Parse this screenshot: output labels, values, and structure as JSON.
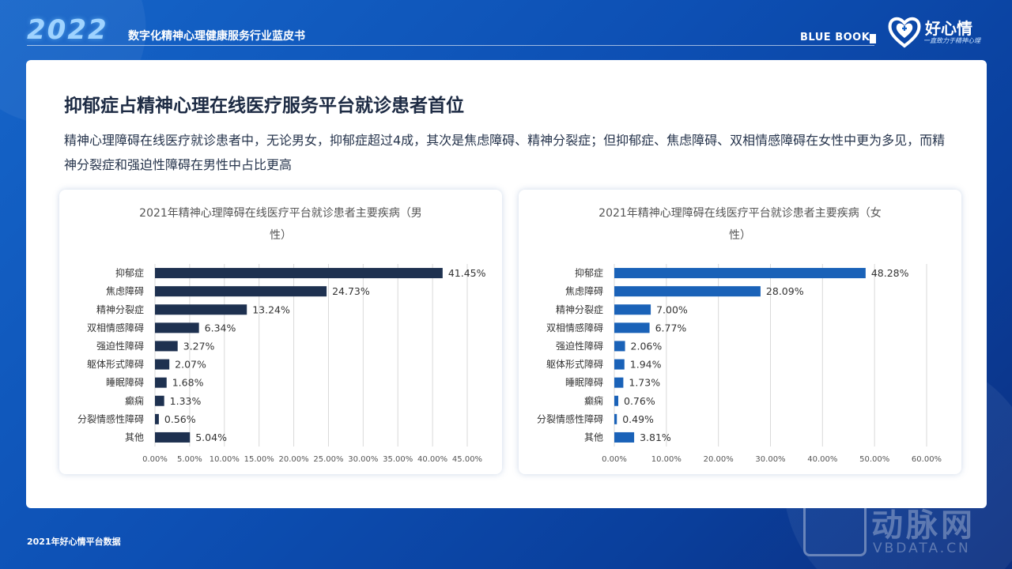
{
  "header": {
    "year": "2022",
    "report_title": "数字化精神心理健康服务行业蓝皮书",
    "bluebook": "BLUE BOOK",
    "logo_name": "好心情",
    "logo_tagline": "一直致力于精神心理"
  },
  "main": {
    "headline": "抑郁症占精神心理在线医疗服务平台就诊患者首位",
    "subtext": "精神心理障碍在线医疗就诊患者中，无论男女，抑郁症超过4成，其次是焦虑障碍、精神分裂症；但抑郁症、焦虑障碍、双相情感障碍在女性中更为多见，而精神分裂症和强迫性障碍在男性中占比更高"
  },
  "footer": {
    "source": "2021年好心情平台数据"
  },
  "watermark": {
    "text": "动脉网",
    "sub": "VBDATA.CN"
  },
  "colors": {
    "male_bar": "#1e3150",
    "female_bar": "#1a62b8",
    "grid": "#d9d9d9"
  },
  "chart_data": [
    {
      "type": "bar",
      "orientation": "horizontal",
      "title": "2021年精神心理障碍在线医疗平台就诊患者主要疾病（男性）",
      "title_lines": [
        "2021年精神心理障碍在线医疗平台就诊患者主要疾病（男",
        "性）"
      ],
      "categories": [
        "抑郁症",
        "焦虑障碍",
        "精神分裂症",
        "双相情感障碍",
        "强迫性障碍",
        "躯体形式障碍",
        "睡眠障碍",
        "癫痫",
        "分裂情感性障碍",
        "其他"
      ],
      "values": [
        41.45,
        24.73,
        13.24,
        6.34,
        3.27,
        2.07,
        1.68,
        1.33,
        0.56,
        5.04
      ],
      "value_labels": [
        "41.45%",
        "24.73%",
        "13.24%",
        "6.34%",
        "3.27%",
        "2.07%",
        "1.68%",
        "1.33%",
        "0.56%",
        "5.04%"
      ],
      "xlim": [
        0,
        45
      ],
      "xticks": [
        "0.00%",
        "5.00%",
        "10.00%",
        "15.00%",
        "20.00%",
        "25.00%",
        "30.00%",
        "35.00%",
        "40.00%",
        "45.00%"
      ],
      "grid": true,
      "legend": "none"
    },
    {
      "type": "bar",
      "orientation": "horizontal",
      "title": "2021年精神心理障碍在线医疗平台就诊患者主要疾病（女性）",
      "title_lines": [
        "2021年精神心理障碍在线医疗平台就诊患者主要疾病（女",
        "性）"
      ],
      "categories": [
        "抑郁症",
        "焦虑障碍",
        "精神分裂症",
        "双相情感障碍",
        "强迫性障碍",
        "躯体形式障碍",
        "睡眠障碍",
        "癫痫",
        "分裂情感性障碍",
        "其他"
      ],
      "values": [
        48.28,
        28.09,
        7.0,
        6.77,
        2.06,
        1.94,
        1.73,
        0.76,
        0.49,
        3.81
      ],
      "value_labels": [
        "48.28%",
        "28.09%",
        "7.00%",
        "6.77%",
        "2.06%",
        "1.94%",
        "1.73%",
        "0.76%",
        "0.49%",
        "3.81%"
      ],
      "xlim": [
        0,
        60
      ],
      "xticks": [
        "0.00%",
        "10.00%",
        "20.00%",
        "30.00%",
        "40.00%",
        "50.00%",
        "60.00%"
      ],
      "grid": true,
      "legend": "none"
    }
  ]
}
